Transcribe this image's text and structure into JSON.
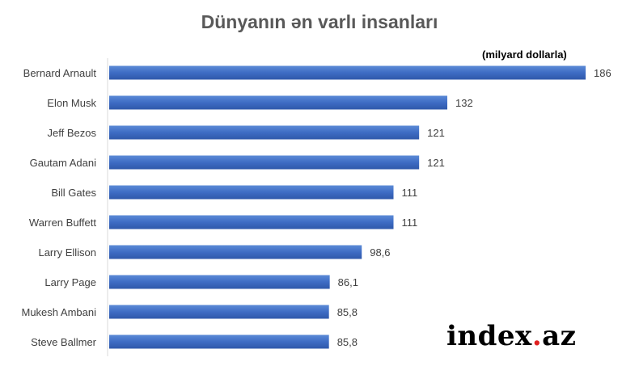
{
  "chart_data": {
    "type": "bar",
    "orientation": "horizontal",
    "title": "Dünyanın ən varlı insanları",
    "unit_note": "(milyard dollarla)",
    "categories": [
      "Bernard Arnault",
      "Elon Musk",
      "Jeff Bezos",
      "Gautam Adani",
      "Bill Gates",
      "Warren Buffett",
      "Larry Ellison",
      "Larry Page",
      "Mukesh Ambani",
      "Steve Ballmer"
    ],
    "values": [
      186,
      132,
      121,
      121,
      111,
      111,
      98.6,
      86.1,
      85.8,
      85.8
    ],
    "value_labels": [
      "186",
      "132",
      "121",
      "121",
      "111",
      "111",
      "98,6",
      "86,1",
      "85,8",
      "85,8"
    ],
    "xlim": [
      0,
      186
    ],
    "grid": false,
    "bar_color": "#4472c4"
  },
  "watermark": {
    "text_main": "index",
    "text_dot": ".",
    "text_tld": "az",
    "dot_color": "#e02020"
  }
}
